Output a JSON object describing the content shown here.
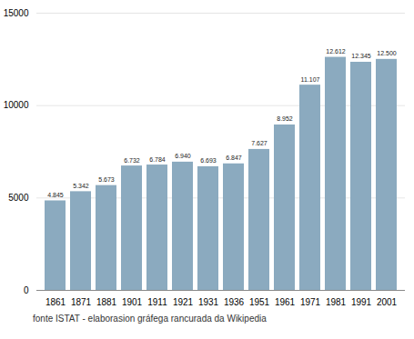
{
  "chart_data": {
    "type": "bar",
    "caption": "fonte ISTAT - elaborasion gráfega rancurada da Wikipedia",
    "categories": [
      "1861",
      "1871",
      "1881",
      "1901",
      "1911",
      "1921",
      "1931",
      "1936",
      "1951",
      "1961",
      "1971",
      "1981",
      "1991",
      "2001"
    ],
    "values": [
      4845,
      5342,
      5673,
      6732,
      6784,
      6940,
      6693,
      6847,
      7627,
      8952,
      11107,
      12612,
      12345,
      12500
    ],
    "value_labels": [
      "4.845",
      "5.342",
      "5.673",
      "6.732",
      "6.784",
      "6.940",
      "6.693",
      "6.847",
      "7.627",
      "8.952",
      "11.107",
      "12.612",
      "12.345",
      "12.500"
    ],
    "data_labels": true,
    "color": "#8baabf",
    "ylim": [
      0,
      15000
    ],
    "yticks": [
      0,
      5000,
      10000,
      15000
    ],
    "grid": true
  }
}
